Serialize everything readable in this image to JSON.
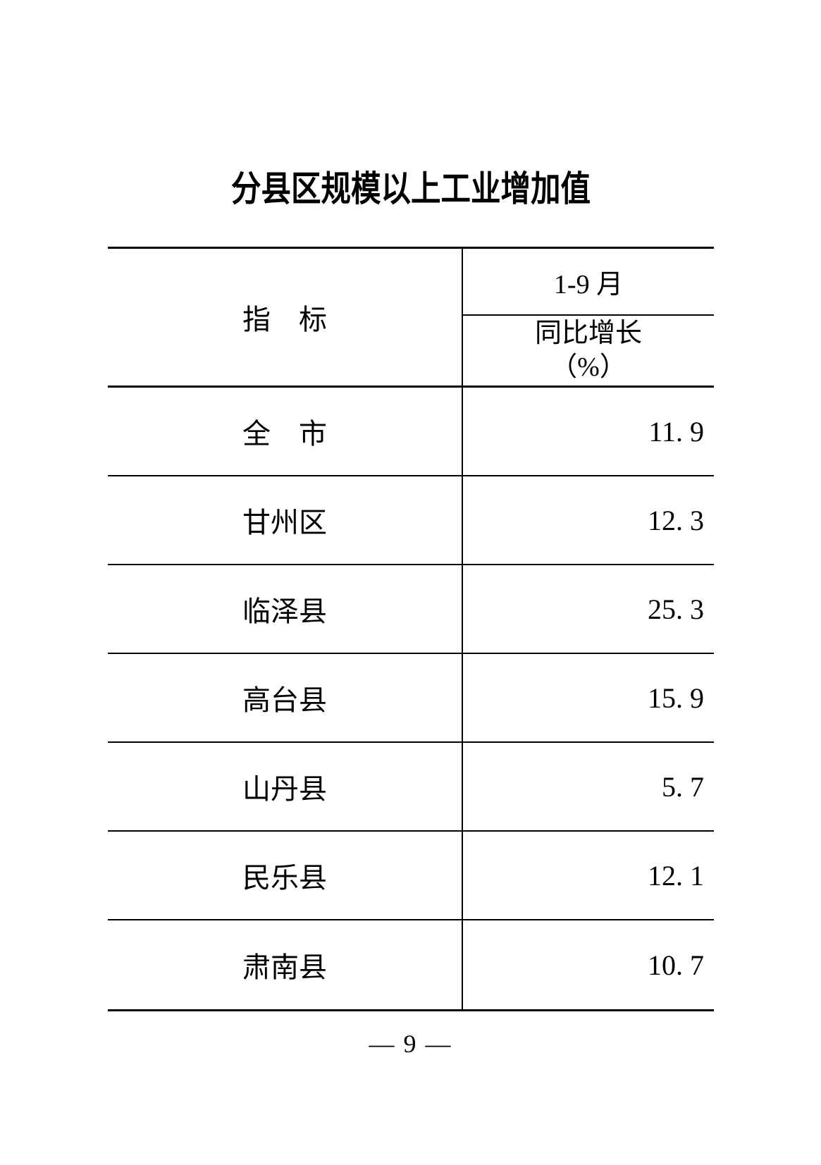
{
  "page": {
    "title": "分县区规模以上工业增加值",
    "page_number": "— 9 —"
  },
  "table": {
    "header": {
      "indicator_label": "指　标",
      "period_label": "1-9 月",
      "metric_label": "同比增长",
      "metric_unit": "（%）"
    },
    "rows": [
      {
        "label": "全　市",
        "value": "11. 9"
      },
      {
        "label": "甘州区",
        "value": "12. 3"
      },
      {
        "label": "临泽县",
        "value": "25. 3"
      },
      {
        "label": "高台县",
        "value": "15. 9"
      },
      {
        "label": "山丹县",
        "value": "5. 7"
      },
      {
        "label": "民乐县",
        "value": "12. 1"
      },
      {
        "label": "肃南县",
        "value": "10. 7"
      }
    ]
  },
  "chart_data": {
    "type": "table",
    "title": "分县区规模以上工业增加值",
    "columns": [
      "指标",
      "1-9月 同比增长（%）"
    ],
    "categories": [
      "全市",
      "甘州区",
      "临泽县",
      "高台县",
      "山丹县",
      "民乐县",
      "肃南县"
    ],
    "values": [
      11.9,
      12.3,
      25.3,
      15.9,
      5.7,
      12.1,
      10.7
    ]
  }
}
